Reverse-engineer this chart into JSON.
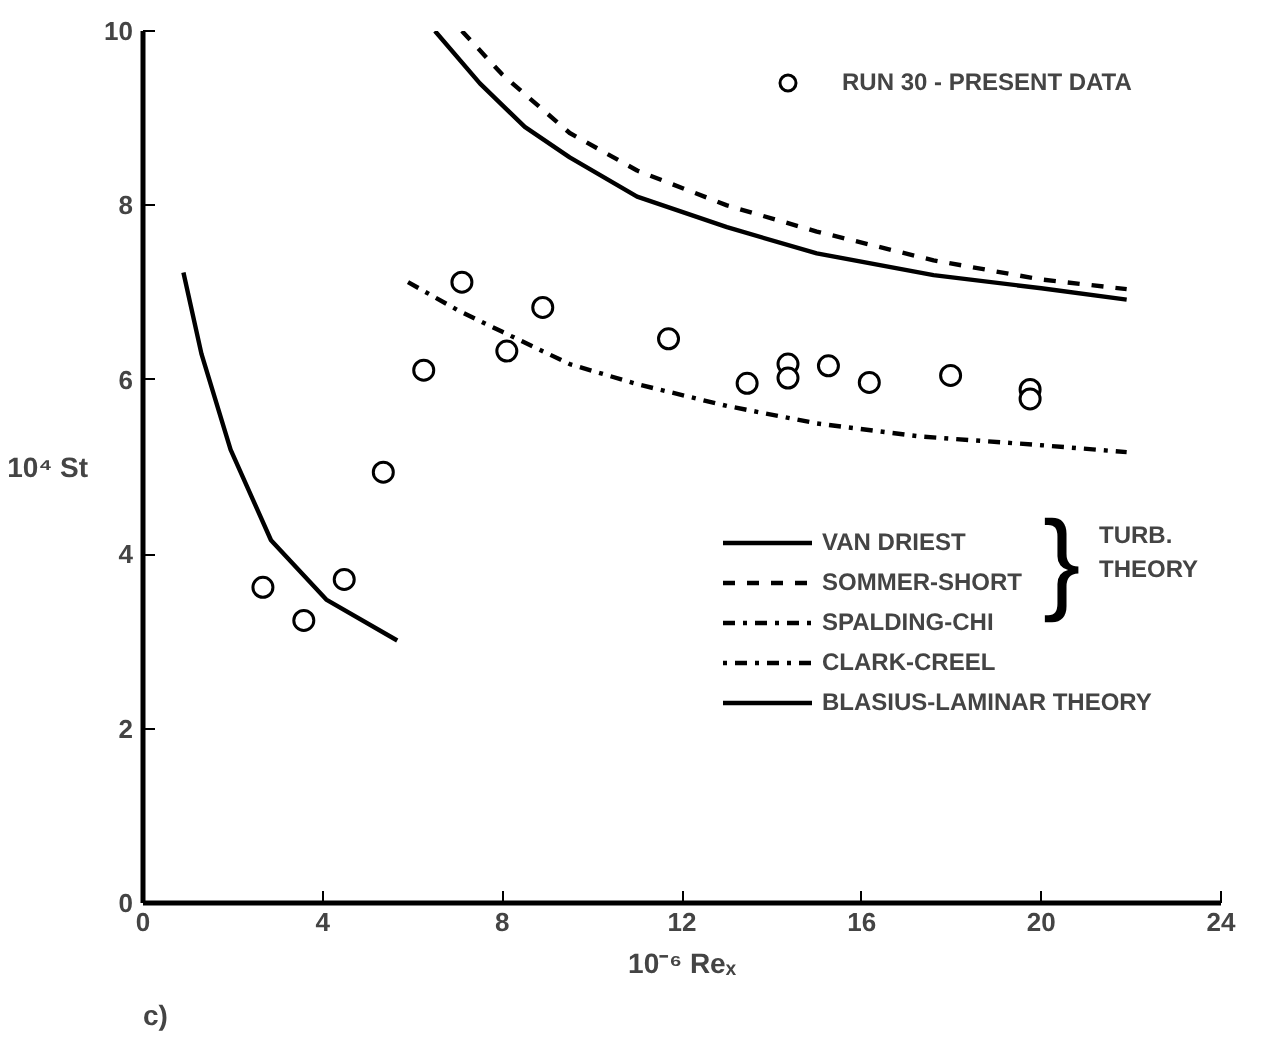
{
  "chart_data": {
    "type": "line",
    "xlabel": "10⁻⁶ Reₓ",
    "ylabel": "10⁴ St",
    "xlim": [
      0,
      24
    ],
    "xticks": [
      0,
      4,
      8,
      12,
      16,
      20,
      24
    ],
    "ylim": [
      0,
      10
    ],
    "yticks": [
      0,
      2,
      4,
      6,
      8,
      10
    ],
    "grid": false,
    "legend": "right",
    "series": [
      {
        "name": "RUN 30 - PRESENT DATA",
        "type": "scatter",
        "marker": "circle",
        "color": "#000000",
        "x": [
          2.67,
          3.58,
          4.48,
          5.35,
          6.25,
          7.1,
          8.1,
          8.9,
          11.7,
          13.45,
          14.36,
          14.36,
          15.26,
          16.17,
          17.98,
          19.75,
          19.75
        ],
        "values": [
          3.62,
          3.24,
          3.71,
          4.94,
          6.11,
          7.12,
          6.33,
          6.83,
          6.47,
          5.96,
          6.18,
          6.02,
          6.16,
          5.97,
          6.05,
          5.89,
          5.78
        ]
      },
      {
        "name": "VAN DRIEST",
        "line_style": "solid",
        "color": "#000000",
        "x": [
          6.5,
          7.5,
          8.5,
          9.5,
          11,
          13,
          15,
          17.6,
          20,
          21.9
        ],
        "values": [
          10.0,
          9.4,
          8.9,
          8.55,
          8.1,
          7.75,
          7.45,
          7.2,
          7.05,
          6.92
        ]
      },
      {
        "name": "SOMMER-SHORT",
        "line_style": "dashed",
        "color": "#000000",
        "x": [
          7.1,
          8,
          9.5,
          11,
          13,
          15,
          17.6,
          20,
          21.9
        ],
        "values": [
          10.0,
          9.5,
          8.83,
          8.4,
          8.0,
          7.7,
          7.37,
          7.15,
          7.04
        ]
      },
      {
        "name": "SPALDING-CHI",
        "line_style": "dashdot",
        "color": "#000000",
        "x": [
          5.9,
          7,
          8,
          9.5,
          11,
          13,
          15,
          17.3,
          20,
          21.9
        ],
        "values": [
          7.12,
          6.8,
          6.55,
          6.18,
          5.95,
          5.7,
          5.5,
          5.35,
          5.25,
          5.17
        ]
      },
      {
        "name": "CLARK-CREEL",
        "line_style": "dotdash",
        "color": "#000000"
      },
      {
        "name": "BLASIUS-LAMINAR THEORY",
        "line_style": "solid",
        "color": "#000000",
        "x": [
          0.9,
          1.3,
          1.95,
          2.85,
          4.08,
          5.66
        ],
        "values": [
          7.23,
          6.3,
          5.2,
          4.16,
          3.48,
          3.01
        ]
      }
    ],
    "annotations": [
      "}",
      "TURB. THEORY",
      "c)"
    ]
  }
}
